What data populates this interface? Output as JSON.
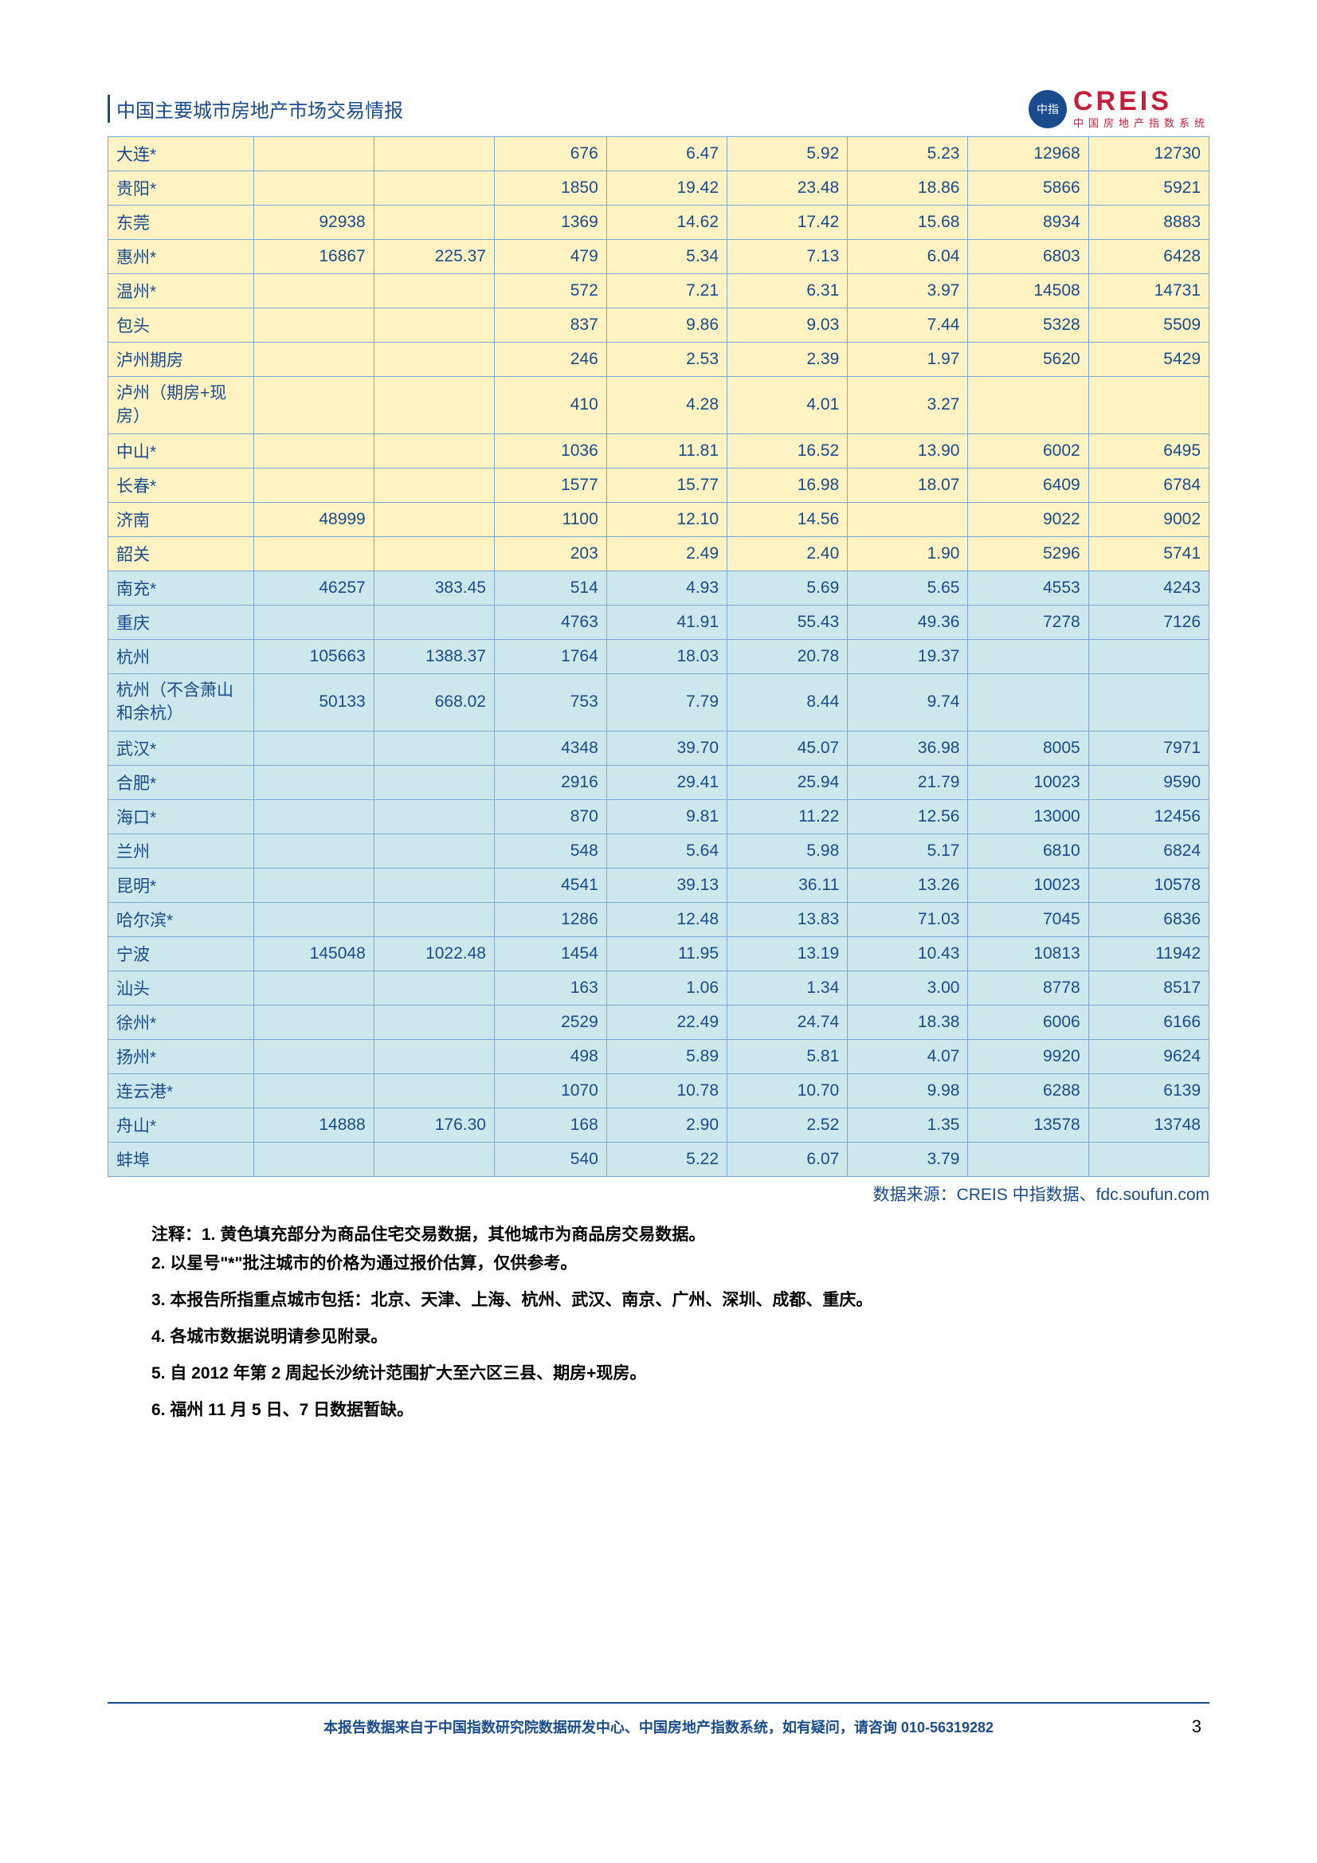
{
  "header": {
    "title": "中国主要城市房地产市场交易情报",
    "logo_badge": "中指",
    "logo_main": "CREIS",
    "logo_sub": "中国房地产指数系统"
  },
  "table": {
    "yellow_row_bg": "#fff3c4",
    "blue_row_bg": "#cce8ed",
    "border_color": "#7da8d4",
    "text_color": "#1a4b8c",
    "rows": [
      {
        "type": "yellow",
        "c": [
          "大连*",
          "",
          "",
          "676",
          "6.47",
          "5.92",
          "5.23",
          "12968",
          "12730"
        ]
      },
      {
        "type": "yellow",
        "c": [
          "贵阳*",
          "",
          "",
          "1850",
          "19.42",
          "23.48",
          "18.86",
          "5866",
          "5921"
        ]
      },
      {
        "type": "yellow",
        "c": [
          "东莞",
          "92938",
          "",
          "1369",
          "14.62",
          "17.42",
          "15.68",
          "8934",
          "8883"
        ]
      },
      {
        "type": "yellow",
        "c": [
          "惠州*",
          "16867",
          "225.37",
          "479",
          "5.34",
          "7.13",
          "6.04",
          "6803",
          "6428"
        ]
      },
      {
        "type": "yellow",
        "c": [
          "温州*",
          "",
          "",
          "572",
          "7.21",
          "6.31",
          "3.97",
          "14508",
          "14731"
        ]
      },
      {
        "type": "yellow",
        "c": [
          "包头",
          "",
          "",
          "837",
          "9.86",
          "9.03",
          "7.44",
          "5328",
          "5509"
        ]
      },
      {
        "type": "yellow",
        "c": [
          "泸州期房",
          "",
          "",
          "246",
          "2.53",
          "2.39",
          "1.97",
          "5620",
          "5429"
        ]
      },
      {
        "type": "yellow",
        "multiline": true,
        "c": [
          "泸州（期房+现房）",
          "",
          "",
          "410",
          "4.28",
          "4.01",
          "3.27",
          "",
          ""
        ]
      },
      {
        "type": "yellow",
        "c": [
          "中山*",
          "",
          "",
          "1036",
          "11.81",
          "16.52",
          "13.90",
          "6002",
          "6495"
        ]
      },
      {
        "type": "yellow",
        "c": [
          "长春*",
          "",
          "",
          "1577",
          "15.77",
          "16.98",
          "18.07",
          "6409",
          "6784"
        ]
      },
      {
        "type": "yellow",
        "c": [
          "济南",
          "48999",
          "",
          "1100",
          "12.10",
          "14.56",
          "",
          "9022",
          "9002"
        ]
      },
      {
        "type": "yellow",
        "c": [
          "韶关",
          "",
          "",
          "203",
          "2.49",
          "2.40",
          "1.90",
          "5296",
          "5741"
        ]
      },
      {
        "type": "blue",
        "c": [
          "南充*",
          "46257",
          "383.45",
          "514",
          "4.93",
          "5.69",
          "5.65",
          "4553",
          "4243"
        ]
      },
      {
        "type": "blue",
        "c": [
          "重庆",
          "",
          "",
          "4763",
          "41.91",
          "55.43",
          "49.36",
          "7278",
          "7126"
        ]
      },
      {
        "type": "blue",
        "c": [
          "杭州",
          "105663",
          "1388.37",
          "1764",
          "18.03",
          "20.78",
          "19.37",
          "",
          ""
        ]
      },
      {
        "type": "blue",
        "multiline": true,
        "c": [
          "杭州（不含萧山和余杭）",
          "50133",
          "668.02",
          "753",
          "7.79",
          "8.44",
          "9.74",
          "",
          ""
        ]
      },
      {
        "type": "blue",
        "c": [
          "武汉*",
          "",
          "",
          "4348",
          "39.70",
          "45.07",
          "36.98",
          "8005",
          "7971"
        ]
      },
      {
        "type": "blue",
        "c": [
          "合肥*",
          "",
          "",
          "2916",
          "29.41",
          "25.94",
          "21.79",
          "10023",
          "9590"
        ]
      },
      {
        "type": "blue",
        "c": [
          "海口*",
          "",
          "",
          "870",
          "9.81",
          "11.22",
          "12.56",
          "13000",
          "12456"
        ]
      },
      {
        "type": "blue",
        "c": [
          "兰州",
          "",
          "",
          "548",
          "5.64",
          "5.98",
          "5.17",
          "6810",
          "6824"
        ]
      },
      {
        "type": "blue",
        "c": [
          "昆明*",
          "",
          "",
          "4541",
          "39.13",
          "36.11",
          "13.26",
          "10023",
          "10578"
        ]
      },
      {
        "type": "blue",
        "c": [
          "哈尔滨*",
          "",
          "",
          "1286",
          "12.48",
          "13.83",
          "71.03",
          "7045",
          "6836"
        ]
      },
      {
        "type": "blue",
        "c": [
          "宁波",
          "145048",
          "1022.48",
          "1454",
          "11.95",
          "13.19",
          "10.43",
          "10813",
          "11942"
        ]
      },
      {
        "type": "blue",
        "c": [
          "汕头",
          "",
          "",
          "163",
          "1.06",
          "1.34",
          "3.00",
          "8778",
          "8517"
        ]
      },
      {
        "type": "blue",
        "c": [
          "徐州*",
          "",
          "",
          "2529",
          "22.49",
          "24.74",
          "18.38",
          "6006",
          "6166"
        ]
      },
      {
        "type": "blue",
        "c": [
          "扬州*",
          "",
          "",
          "498",
          "5.89",
          "5.81",
          "4.07",
          "9920",
          "9624"
        ]
      },
      {
        "type": "blue",
        "c": [
          "连云港*",
          "",
          "",
          "1070",
          "10.78",
          "10.70",
          "9.98",
          "6288",
          "6139"
        ]
      },
      {
        "type": "blue",
        "c": [
          "舟山*",
          "14888",
          "176.30",
          "168",
          "2.90",
          "2.52",
          "1.35",
          "13578",
          "13748"
        ]
      },
      {
        "type": "blue",
        "c": [
          "蚌埠",
          "",
          "",
          "540",
          "5.22",
          "6.07",
          "3.79",
          "",
          ""
        ]
      }
    ]
  },
  "source": "数据来源：CREIS 中指数据、fdc.soufun.com",
  "notes": {
    "label": "注释：",
    "items": [
      "1. 黄色填充部分为商品住宅交易数据，其他城市为商品房交易数据。",
      "2. 以星号\"*\"批注城市的价格为通过报价估算，仅供参考。",
      "3. 本报告所指重点城市包括：北京、天津、上海、杭州、武汉、南京、广州、深圳、成都、重庆。",
      "4. 各城市数据说明请参见附录。",
      "5. 自 2012 年第 2 周起长沙统计范围扩大至六区三县、期房+现房。",
      "6. 福州 11 月 5 日、7 日数据暂缺。"
    ]
  },
  "footer": {
    "text": "本报告数据来自于中国指数研究院数据研发中心、中国房地产指数系统，如有疑问，请咨询 010-56319282",
    "page": "3"
  }
}
